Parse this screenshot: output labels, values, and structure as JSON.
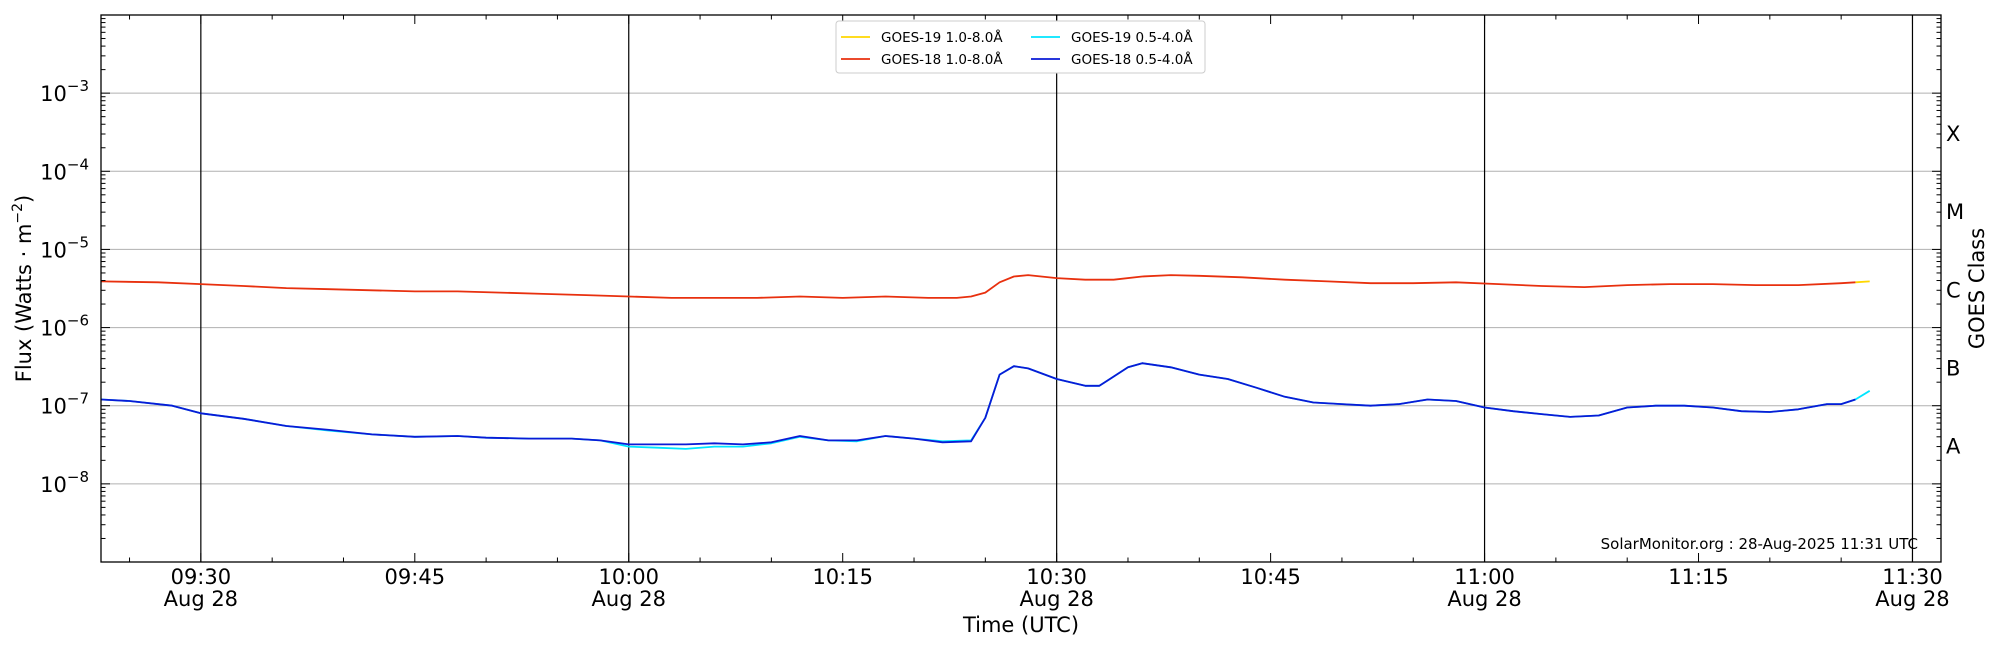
{
  "chart_data": {
    "type": "line",
    "xlabel": "Time (UTC)",
    "ylabel_main": "Flux (Watts · m",
    "ylabel_sup": "−2",
    "ylabel_close": ")",
    "ylabel_right": "GOES Class",
    "x_range": [
      "09:23",
      "11:32"
    ],
    "ylim": [
      1e-09,
      0.01
    ],
    "yscale": "log",
    "grid": "horizontal at decades",
    "legend_position": "top-center",
    "x_ticks": [
      {
        "time": "09:30",
        "label": "09:30",
        "sublabel": "Aug 28",
        "major": true
      },
      {
        "time": "09:45",
        "label": "09:45",
        "sublabel": "",
        "major": false
      },
      {
        "time": "10:00",
        "label": "10:00",
        "sublabel": "Aug 28",
        "major": true
      },
      {
        "time": "10:15",
        "label": "10:15",
        "sublabel": "",
        "major": false
      },
      {
        "time": "10:30",
        "label": "10:30",
        "sublabel": "Aug 28",
        "major": true
      },
      {
        "time": "10:45",
        "label": "10:45",
        "sublabel": "",
        "major": false
      },
      {
        "time": "11:00",
        "label": "11:00",
        "sublabel": "Aug 28",
        "major": true
      },
      {
        "time": "11:15",
        "label": "11:15",
        "sublabel": "",
        "major": false
      },
      {
        "time": "11:30",
        "label": "11:30",
        "sublabel": "Aug 28",
        "major": true
      }
    ],
    "y_ticks": [
      {
        "exp": -3,
        "label": "10",
        "sup": "−3"
      },
      {
        "exp": -4,
        "label": "10",
        "sup": "−4"
      },
      {
        "exp": -5,
        "label": "10",
        "sup": "−5"
      },
      {
        "exp": -6,
        "label": "10",
        "sup": "−6"
      },
      {
        "exp": -7,
        "label": "10",
        "sup": "−7"
      },
      {
        "exp": -8,
        "label": "10",
        "sup": "−8"
      }
    ],
    "goes_classes": [
      {
        "label": "X",
        "level": 0.0003
      },
      {
        "label": "M",
        "level": 3e-05
      },
      {
        "label": "C",
        "level": 3e-06
      },
      {
        "label": "B",
        "level": 3e-07
      },
      {
        "label": "A",
        "level": 3e-08
      }
    ],
    "credit": "SolarMonitor.org : 28-Aug-2025 11:31 UTC",
    "series": [
      {
        "name": "GOES-19 1.0-8.0Å",
        "color": "#ffd700",
        "x": [
          "11:26",
          "11:27"
        ],
        "y": [
          3.8e-06,
          3.9e-06
        ]
      },
      {
        "name": "GOES-19 0.5-4.0Å",
        "color": "#00e5ff",
        "x": [
          "09:23",
          "09:25",
          "09:28",
          "09:30",
          "09:33",
          "09:36",
          "09:39",
          "09:42",
          "09:45",
          "09:48",
          "09:50",
          "09:53",
          "09:56",
          "09:58",
          "10:00",
          "10:02",
          "10:04",
          "10:06",
          "10:08",
          "10:10",
          "10:12",
          "10:14",
          "10:16",
          "10:18",
          "10:20",
          "10:22",
          "10:24",
          "10:25",
          "10:26",
          "10:27",
          "10:28",
          "10:30",
          "10:32",
          "10:33",
          "10:35",
          "10:36",
          "10:38",
          "10:40",
          "10:42",
          "10:44",
          "10:46",
          "10:48",
          "10:50",
          "10:52",
          "10:54",
          "10:56",
          "10:58",
          "11:00",
          "11:02",
          "11:04",
          "11:06",
          "11:08",
          "11:10",
          "11:12",
          "11:14",
          "11:16",
          "11:18",
          "11:20",
          "11:22",
          "11:24",
          "11:25",
          "11:26",
          "11:27"
        ],
        "y": [
          1.2e-07,
          1.15e-07,
          1e-07,
          8e-08,
          6.8e-08,
          5.5e-08,
          4.8e-08,
          4.3e-08,
          4e-08,
          4.1e-08,
          3.9e-08,
          3.8e-08,
          3.8e-08,
          3.6e-08,
          3e-08,
          2.9e-08,
          2.8e-08,
          3e-08,
          3e-08,
          3.3e-08,
          4e-08,
          3.6e-08,
          3.5e-08,
          4.1e-08,
          3.8e-08,
          3.5e-08,
          3.6e-08,
          7e-08,
          2.5e-07,
          3.2e-07,
          3e-07,
          2.2e-07,
          1.8e-07,
          1.8e-07,
          3.1e-07,
          3.5e-07,
          3.1e-07,
          2.5e-07,
          2.2e-07,
          1.7e-07,
          1.3e-07,
          1.1e-07,
          1.05e-07,
          1e-07,
          1.05e-07,
          1.2e-07,
          1.15e-07,
          9.5e-08,
          8.5e-08,
          7.8e-08,
          7.2e-08,
          7.5e-08,
          9.5e-08,
          1e-07,
          1e-07,
          9.5e-08,
          8.5e-08,
          8.3e-08,
          9e-08,
          1.05e-07,
          1.05e-07,
          1.2e-07,
          1.55e-07
        ]
      },
      {
        "name": "GOES-18 1.0-8.0Å",
        "color": "#e8300e",
        "x": [
          "09:23",
          "09:27",
          "09:30",
          "09:33",
          "09:36",
          "09:39",
          "09:42",
          "09:45",
          "09:48",
          "09:51",
          "09:54",
          "09:57",
          "10:00",
          "10:03",
          "10:06",
          "10:09",
          "10:12",
          "10:15",
          "10:18",
          "10:21",
          "10:23",
          "10:24",
          "10:25",
          "10:26",
          "10:27",
          "10:28",
          "10:30",
          "10:32",
          "10:34",
          "10:36",
          "10:38",
          "10:40",
          "10:43",
          "10:46",
          "10:49",
          "10:52",
          "10:55",
          "10:58",
          "11:01",
          "11:04",
          "11:07",
          "11:10",
          "11:13",
          "11:16",
          "11:19",
          "11:22",
          "11:25",
          "11:26"
        ],
        "y": [
          3.9e-06,
          3.8e-06,
          3.6e-06,
          3.4e-06,
          3.2e-06,
          3.1e-06,
          3e-06,
          2.9e-06,
          2.9e-06,
          2.8e-06,
          2.7e-06,
          2.6e-06,
          2.5e-06,
          2.4e-06,
          2.4e-06,
          2.4e-06,
          2.5e-06,
          2.4e-06,
          2.5e-06,
          2.4e-06,
          2.4e-06,
          2.5e-06,
          2.8e-06,
          3.8e-06,
          4.5e-06,
          4.7e-06,
          4.3e-06,
          4.1e-06,
          4.1e-06,
          4.5e-06,
          4.7e-06,
          4.6e-06,
          4.4e-06,
          4.1e-06,
          3.9e-06,
          3.7e-06,
          3.7e-06,
          3.8e-06,
          3.6e-06,
          3.4e-06,
          3.3e-06,
          3.5e-06,
          3.6e-06,
          3.6e-06,
          3.5e-06,
          3.5e-06,
          3.7e-06,
          3.8e-06
        ]
      },
      {
        "name": "GOES-18 0.5-4.0Å",
        "color": "#0a1ad6",
        "x": [
          "09:23",
          "09:25",
          "09:28",
          "09:30",
          "09:33",
          "09:36",
          "09:39",
          "09:42",
          "09:45",
          "09:48",
          "09:50",
          "09:53",
          "09:56",
          "09:58",
          "10:00",
          "10:02",
          "10:04",
          "10:06",
          "10:08",
          "10:10",
          "10:12",
          "10:14",
          "10:16",
          "10:18",
          "10:20",
          "10:22",
          "10:24",
          "10:25",
          "10:26",
          "10:27",
          "10:28",
          "10:30",
          "10:32",
          "10:33",
          "10:35",
          "10:36",
          "10:38",
          "10:40",
          "10:42",
          "10:44",
          "10:46",
          "10:48",
          "10:50",
          "10:52",
          "10:54",
          "10:56",
          "10:58",
          "11:00",
          "11:02",
          "11:04",
          "11:06",
          "11:08",
          "11:10",
          "11:12",
          "11:14",
          "11:16",
          "11:18",
          "11:20",
          "11:22",
          "11:24",
          "11:25",
          "11:26"
        ],
        "y": [
          1.2e-07,
          1.15e-07,
          1e-07,
          8e-08,
          6.8e-08,
          5.5e-08,
          4.9e-08,
          4.3e-08,
          4e-08,
          4.1e-08,
          3.9e-08,
          3.8e-08,
          3.8e-08,
          3.6e-08,
          3.2e-08,
          3.2e-08,
          3.2e-08,
          3.3e-08,
          3.2e-08,
          3.4e-08,
          4.1e-08,
          3.6e-08,
          3.6e-08,
          4.1e-08,
          3.8e-08,
          3.4e-08,
          3.5e-08,
          7e-08,
          2.5e-07,
          3.2e-07,
          3e-07,
          2.2e-07,
          1.8e-07,
          1.8e-07,
          3.1e-07,
          3.5e-07,
          3.1e-07,
          2.5e-07,
          2.2e-07,
          1.7e-07,
          1.3e-07,
          1.1e-07,
          1.05e-07,
          1e-07,
          1.05e-07,
          1.2e-07,
          1.15e-07,
          9.5e-08,
          8.5e-08,
          7.8e-08,
          7.2e-08,
          7.5e-08,
          9.5e-08,
          1e-07,
          1e-07,
          9.5e-08,
          8.5e-08,
          8.3e-08,
          9e-08,
          1.05e-07,
          1.05e-07,
          1.2e-07
        ]
      }
    ],
    "legend_order": [
      0,
      1,
      2,
      3
    ]
  }
}
